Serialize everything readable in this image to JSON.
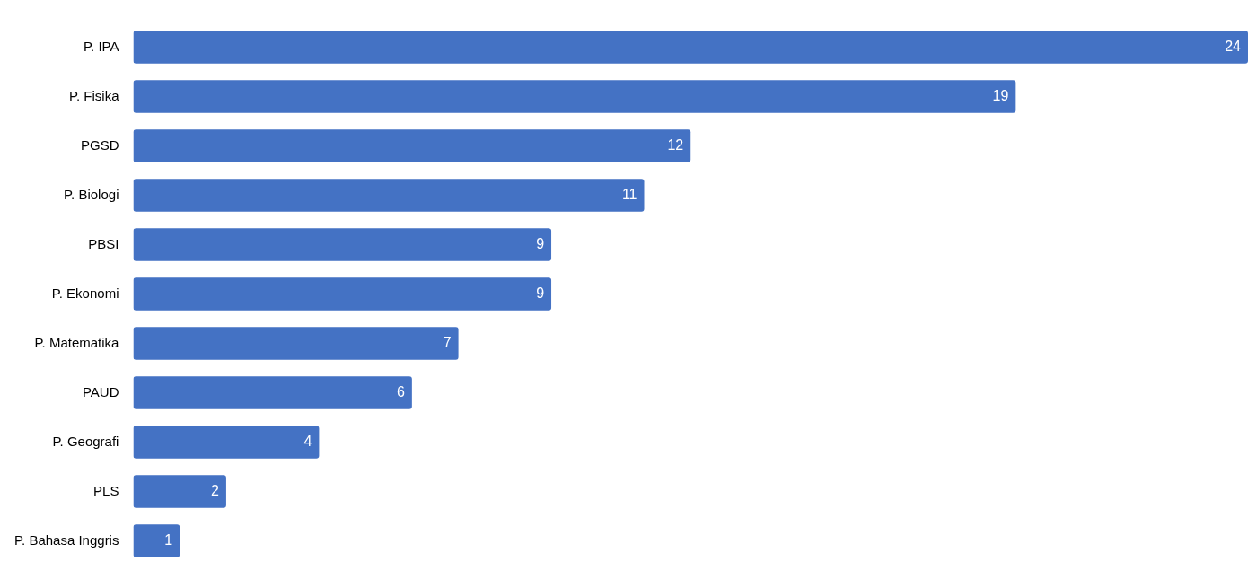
{
  "chart_data": {
    "type": "bar",
    "orientation": "horizontal",
    "categories": [
      "P. IPA",
      "P. Fisika",
      "PGSD",
      "P. Biologi",
      "PBSI",
      "P. Ekonomi",
      "P. Matematika",
      "PAUD",
      "P. Geografi",
      "PLS",
      "P. Bahasa Inggris"
    ],
    "values": [
      24,
      19,
      12,
      11,
      9,
      9,
      7,
      6,
      4,
      2,
      1
    ],
    "color": "#4472c4",
    "xlim": [
      0,
      24
    ],
    "data_labels": true,
    "legend": false,
    "tick_labels": "y"
  }
}
